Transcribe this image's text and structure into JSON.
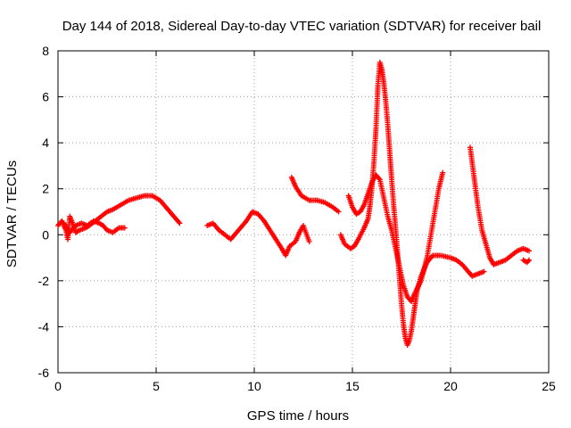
{
  "chart_data": {
    "type": "scatter",
    "title": "Day 144 of 2018, Sidereal Day-to-day VTEC variation (SDTVAR) for receiver bail",
    "xlabel": "GPS time / hours",
    "ylabel": "SDTVAR / TECUs",
    "xlim": [
      0,
      25
    ],
    "ylim": [
      -6,
      8
    ],
    "xticks": [
      0,
      5,
      10,
      15,
      20,
      25
    ],
    "yticks": [
      -6,
      -4,
      -2,
      0,
      2,
      4,
      6,
      8
    ],
    "grid": true,
    "marker": "+",
    "color": "#ff0000",
    "series": [
      {
        "name": "seg-a1",
        "points": [
          [
            0.0,
            0.4
          ],
          [
            0.2,
            0.6
          ],
          [
            0.4,
            0.2
          ],
          [
            0.5,
            -0.2
          ],
          [
            0.6,
            0.8
          ],
          [
            0.7,
            0.6
          ],
          [
            0.9,
            0.1
          ],
          [
            1.1,
            0.2
          ],
          [
            1.4,
            0.3
          ],
          [
            1.6,
            0.4
          ],
          [
            1.9,
            0.6
          ],
          [
            2.2,
            0.8
          ],
          [
            2.5,
            1.0
          ],
          [
            2.8,
            1.1
          ],
          [
            3.2,
            1.3
          ],
          [
            3.6,
            1.5
          ],
          [
            4.0,
            1.6
          ],
          [
            4.4,
            1.7
          ],
          [
            4.8,
            1.7
          ],
          [
            5.2,
            1.5
          ],
          [
            5.6,
            1.1
          ],
          [
            6.0,
            0.7
          ],
          [
            6.2,
            0.5
          ]
        ]
      },
      {
        "name": "seg-a2",
        "points": [
          [
            0.3,
            0.5
          ],
          [
            0.6,
            0.1
          ],
          [
            0.9,
            0.4
          ],
          [
            1.2,
            0.5
          ],
          [
            1.5,
            0.4
          ],
          [
            1.8,
            0.6
          ],
          [
            2.1,
            0.5
          ],
          [
            2.3,
            0.4
          ],
          [
            2.5,
            0.2
          ],
          [
            2.8,
            0.1
          ],
          [
            3.1,
            0.3
          ],
          [
            3.4,
            0.3
          ]
        ]
      },
      {
        "name": "seg-b",
        "points": [
          [
            7.6,
            0.4
          ],
          [
            7.9,
            0.5
          ],
          [
            8.2,
            0.2
          ],
          [
            8.5,
            0.0
          ],
          [
            8.8,
            -0.2
          ],
          [
            9.0,
            0.0
          ],
          [
            9.3,
            0.3
          ],
          [
            9.6,
            0.6
          ],
          [
            9.9,
            1.0
          ],
          [
            10.2,
            0.9
          ],
          [
            10.5,
            0.6
          ],
          [
            10.8,
            0.2
          ],
          [
            11.1,
            -0.2
          ],
          [
            11.4,
            -0.6
          ],
          [
            11.6,
            -0.9
          ],
          [
            11.8,
            -0.5
          ],
          [
            12.1,
            -0.3
          ],
          [
            12.3,
            0.1
          ],
          [
            12.5,
            0.4
          ],
          [
            12.8,
            -0.3
          ]
        ]
      },
      {
        "name": "seg-c",
        "points": [
          [
            11.9,
            2.5
          ],
          [
            12.1,
            2.1
          ],
          [
            12.4,
            1.7
          ],
          [
            12.8,
            1.5
          ],
          [
            13.2,
            1.5
          ],
          [
            13.6,
            1.4
          ],
          [
            14.0,
            1.2
          ],
          [
            14.3,
            1.0
          ]
        ]
      },
      {
        "name": "seg-d1",
        "points": [
          [
            14.4,
            0.0
          ],
          [
            14.6,
            -0.4
          ],
          [
            14.9,
            -0.6
          ],
          [
            15.1,
            -0.5
          ],
          [
            15.3,
            -0.2
          ],
          [
            15.6,
            0.3
          ],
          [
            15.8,
            0.7
          ],
          [
            15.9,
            1.3
          ],
          [
            16.0,
            2.1
          ],
          [
            16.1,
            3.2
          ],
          [
            16.2,
            4.6
          ],
          [
            16.3,
            6.5
          ],
          [
            16.4,
            7.5
          ],
          [
            16.5,
            7.2
          ],
          [
            16.6,
            6.6
          ],
          [
            16.7,
            5.8
          ],
          [
            16.8,
            4.8
          ],
          [
            16.9,
            3.6
          ],
          [
            17.0,
            2.4
          ],
          [
            17.1,
            1.3
          ],
          [
            17.2,
            0.3
          ],
          [
            17.3,
            -0.8
          ],
          [
            17.4,
            -1.9
          ],
          [
            17.5,
            -3.0
          ],
          [
            17.6,
            -3.9
          ],
          [
            17.7,
            -4.5
          ],
          [
            17.8,
            -4.8
          ],
          [
            17.9,
            -4.6
          ],
          [
            18.0,
            -4.2
          ],
          [
            18.1,
            -3.6
          ],
          [
            18.2,
            -3.0
          ],
          [
            18.3,
            -2.4
          ],
          [
            18.5,
            -1.8
          ],
          [
            18.8,
            -1.2
          ],
          [
            19.1,
            -0.9
          ],
          [
            19.5,
            -0.9
          ],
          [
            20.0,
            -1.0
          ],
          [
            20.3,
            -1.1
          ],
          [
            20.6,
            -1.3
          ],
          [
            20.9,
            -1.6
          ],
          [
            21.1,
            -1.8
          ],
          [
            21.4,
            -1.7
          ],
          [
            21.7,
            -1.6
          ]
        ]
      },
      {
        "name": "seg-d2",
        "points": [
          [
            14.8,
            1.7
          ],
          [
            15.0,
            1.2
          ],
          [
            15.2,
            0.9
          ],
          [
            15.4,
            1.0
          ],
          [
            15.6,
            1.3
          ],
          [
            15.8,
            1.8
          ],
          [
            16.0,
            2.3
          ],
          [
            16.2,
            2.6
          ],
          [
            16.4,
            2.4
          ],
          [
            16.6,
            1.6
          ],
          [
            16.8,
            0.8
          ],
          [
            17.0,
            0.2
          ],
          [
            17.2,
            -0.6
          ],
          [
            17.4,
            -1.4
          ],
          [
            17.6,
            -2.2
          ],
          [
            17.8,
            -2.7
          ],
          [
            18.0,
            -2.9
          ],
          [
            18.2,
            -2.5
          ],
          [
            18.5,
            -2.0
          ],
          [
            18.8,
            -1.0
          ],
          [
            19.0,
            0.0
          ],
          [
            19.2,
            1.0
          ],
          [
            19.4,
            2.0
          ],
          [
            19.6,
            2.7
          ]
        ]
      },
      {
        "name": "seg-e",
        "points": [
          [
            21.0,
            3.8
          ],
          [
            21.2,
            2.5
          ],
          [
            21.4,
            1.2
          ],
          [
            21.6,
            0.2
          ],
          [
            21.8,
            -0.4
          ],
          [
            22.0,
            -1.0
          ],
          [
            22.2,
            -1.3
          ],
          [
            22.5,
            -1.2
          ],
          [
            22.8,
            -1.1
          ],
          [
            23.1,
            -0.9
          ],
          [
            23.4,
            -0.7
          ],
          [
            23.7,
            -0.6
          ],
          [
            24.0,
            -0.7
          ]
        ]
      },
      {
        "name": "seg-f",
        "points": [
          [
            23.7,
            -1.1
          ],
          [
            23.9,
            -1.2
          ],
          [
            24.0,
            -1.1
          ]
        ]
      }
    ]
  }
}
